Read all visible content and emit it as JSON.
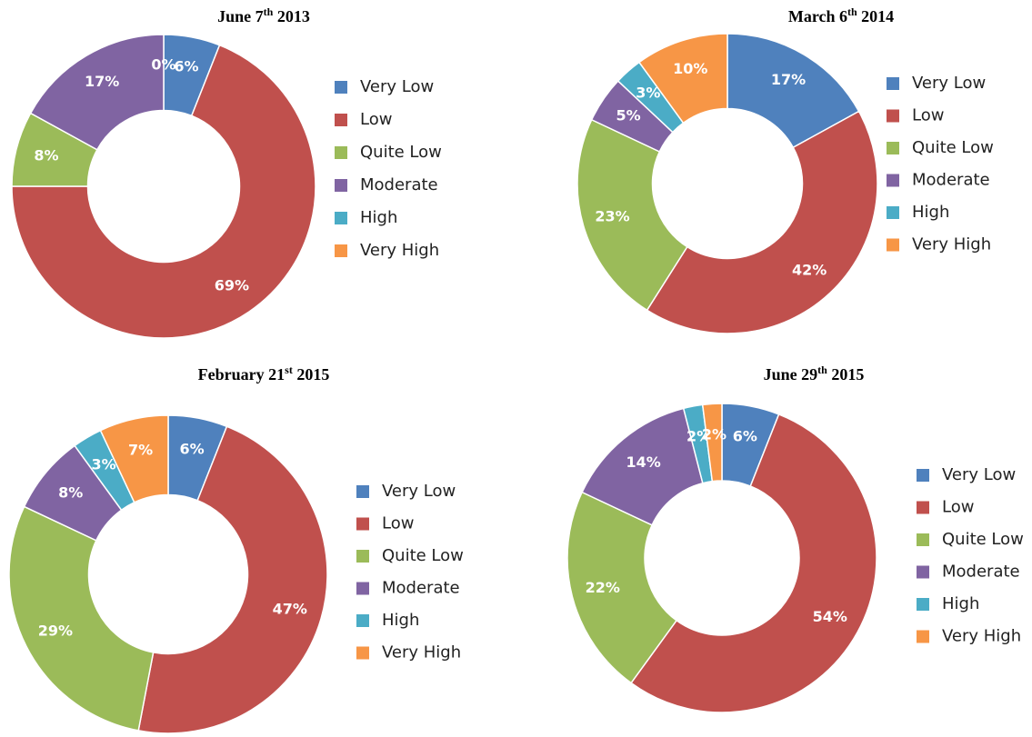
{
  "chart_data": [
    {
      "type": "pie",
      "title": "June 7th 2013",
      "categories": [
        "Very Low",
        "Low",
        "Quite Low",
        "Moderate",
        "High",
        "Very High"
      ],
      "values": [
        6,
        69,
        8,
        17,
        0,
        0
      ],
      "value_labels": [
        "6%",
        "69%",
        "8%",
        "17%",
        "0%",
        null
      ],
      "colors": [
        "#4f81bd",
        "#c0504d",
        "#9bbb59",
        "#8064a2",
        "#4bacc6",
        "#f79646"
      ]
    },
    {
      "type": "pie",
      "title": "March 6th 2014",
      "categories": [
        "Very Low",
        "Low",
        "Quite Low",
        "Moderate",
        "High",
        "Very High"
      ],
      "values": [
        17,
        42,
        23,
        5,
        3,
        10
      ],
      "value_labels": [
        "17%",
        "42%",
        "23%",
        "5%",
        "3%",
        "10%"
      ],
      "colors": [
        "#4f81bd",
        "#c0504d",
        "#9bbb59",
        "#8064a2",
        "#4bacc6",
        "#f79646"
      ]
    },
    {
      "type": "pie",
      "title": "February 21st 2015",
      "categories": [
        "Very Low",
        "Low",
        "Quite Low",
        "Moderate",
        "High",
        "Very High"
      ],
      "values": [
        6,
        47,
        29,
        8,
        3,
        7
      ],
      "value_labels": [
        "6%",
        "47%",
        "29%",
        "8%",
        "3%",
        "7%"
      ],
      "colors": [
        "#4f81bd",
        "#c0504d",
        "#9bbb59",
        "#8064a2",
        "#4bacc6",
        "#f79646"
      ]
    },
    {
      "type": "pie",
      "title": "June 29th 2015",
      "categories": [
        "Very Low",
        "Low",
        "Quite Low",
        "Moderate",
        "High",
        "Very High"
      ],
      "values": [
        6,
        54,
        22,
        14,
        2,
        2
      ],
      "value_labels": [
        "6%",
        "54%",
        "22%",
        "14%",
        "2%",
        "2%"
      ],
      "colors": [
        "#4f81bd",
        "#c0504d",
        "#9bbb59",
        "#8064a2",
        "#4bacc6",
        "#f79646"
      ]
    }
  ]
}
